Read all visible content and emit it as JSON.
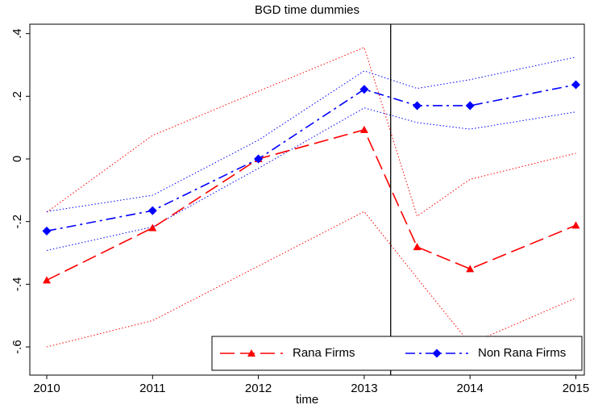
{
  "chart_data": {
    "type": "line",
    "title": "BGD time dummies",
    "x_label": "time",
    "x": [
      2010,
      2011,
      2012,
      2013,
      2013.5,
      2014,
      2015
    ],
    "xlim": [
      2009.84,
      2015.08
    ],
    "xticks": [
      2010,
      2011,
      2012,
      2013,
      2014,
      2015
    ],
    "ylim": [
      -0.69,
      0.43
    ],
    "yticks": [
      {
        "value": 0.4,
        "label": ".4"
      },
      {
        "value": 0.2,
        "label": ".2"
      },
      0,
      {
        "value": -0.2,
        "label": "-.2"
      },
      {
        "value": -0.4,
        "label": "-.4"
      },
      {
        "value": -0.6,
        "label": "-.6"
      }
    ],
    "vline": 2013.25,
    "legend_position": "lower right",
    "series": [
      {
        "name": "Rana Firms",
        "color": "#ff0000",
        "marker": "triangle",
        "dash": "long-dash",
        "values": [
          -0.387,
          -0.22,
          0,
          0.093,
          -0.281,
          -0.351,
          -0.212
        ],
        "ci_upper": [
          -0.17,
          0.075,
          0.216,
          0.356,
          -0.183,
          -0.065,
          0.018
        ],
        "ci_lower": [
          -0.6,
          -0.516,
          -0.342,
          -0.168,
          -0.38,
          -0.59,
          -0.444
        ]
      },
      {
        "name": "Non Rana Firms",
        "color": "#0000ff",
        "marker": "diamond",
        "dash": "dash-dot",
        "values": [
          -0.23,
          -0.165,
          0,
          0.222,
          0.17,
          0.17,
          0.237
        ],
        "ci_upper": [
          -0.168,
          -0.116,
          0.06,
          0.281,
          0.225,
          0.253,
          0.325
        ],
        "ci_lower": [
          -0.292,
          -0.217,
          -0.03,
          0.163,
          0.116,
          0.095,
          0.15
        ]
      }
    ]
  }
}
